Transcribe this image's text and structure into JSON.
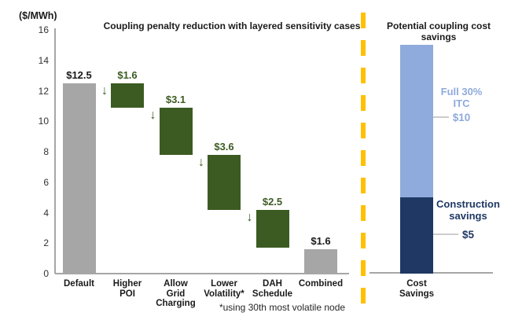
{
  "chart_data": [
    {
      "type": "bar",
      "subtype": "waterfall",
      "title": "Coupling penalty reduction with layered sensitivity cases",
      "ylabel": "($/MWh)",
      "xlabel": "",
      "ylim": [
        0,
        16
      ],
      "yticks": [
        0,
        2,
        4,
        6,
        8,
        10,
        12,
        14,
        16
      ],
      "grid": false,
      "footnote": "*using 30th most volatile node",
      "categories": [
        "Default",
        "Higher POI",
        "Allow Grid Charging",
        "Lower Volatility*",
        "DAH Schedule",
        "Combined"
      ],
      "bars": [
        {
          "category_lines": "Default",
          "label": "$12.5",
          "from": 0,
          "to": 12.5,
          "kind": "total",
          "value": 12.5
        },
        {
          "category_lines": "Higher\nPOI",
          "label": "$1.6",
          "from": 12.5,
          "to": 10.9,
          "kind": "delta",
          "value": -1.6
        },
        {
          "category_lines": "Allow\nGrid\nCharging",
          "label": "$3.1",
          "from": 10.9,
          "to": 7.8,
          "kind": "delta",
          "value": -3.1
        },
        {
          "category_lines": "Lower\nVolatility*",
          "label": "$3.6",
          "from": 7.8,
          "to": 4.2,
          "kind": "delta",
          "value": -3.6
        },
        {
          "category_lines": "DAH\nSchedule",
          "label": "$2.5",
          "from": 4.2,
          "to": 1.7,
          "kind": "delta",
          "value": -2.5
        },
        {
          "category_lines": "Combined",
          "label": "$1.6",
          "from": 0,
          "to": 1.6,
          "kind": "total",
          "value": 1.6
        }
      ]
    },
    {
      "type": "bar",
      "subtype": "stacked",
      "title": "Potential coupling cost savings",
      "ylim": [
        0,
        16
      ],
      "grid": false,
      "categories": [
        "Cost Savings"
      ],
      "category_lines": "Cost\nSavings",
      "segments": [
        {
          "name": "Construction savings",
          "from": 0,
          "to": 5,
          "value": 5,
          "color": "#1f3864"
        },
        {
          "name": "Full 30% ITC",
          "from": 5,
          "to": 15,
          "value": 10,
          "color": "#8faadc"
        }
      ],
      "annotations": [
        {
          "text_lines": "Full 30%\nITC",
          "value_label": "$10",
          "color": "#8faadc"
        },
        {
          "text_lines": "Construction\nsavings",
          "value_label": "$5",
          "color": "#1f3864"
        }
      ]
    }
  ],
  "colors": {
    "total_bar": "#a6a6a6",
    "delta_bar": "#3c5b22",
    "delta_label": "#3c5b22",
    "total_label": "#1a1a1a",
    "arrow": "#3c5b22",
    "axis": "#a6a6a6",
    "divider": "#ffc000",
    "connector": "#cccccc"
  }
}
